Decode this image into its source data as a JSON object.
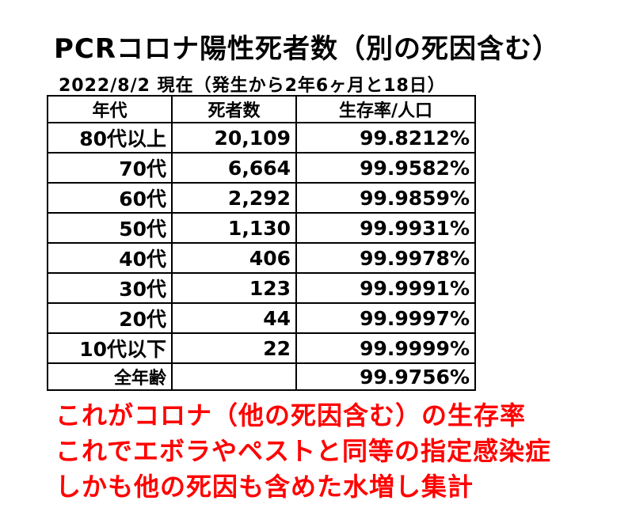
{
  "title": "PCRコロナ陽性死者数（別の死因含む）",
  "subtitle": "2022/8/2 現在（発生から2年6ヶ月と18日）",
  "table": {
    "headers": [
      "年代",
      "死者数",
      "生存率/人口"
    ],
    "rows": [
      {
        "age": "80代以上",
        "deaths": "20,109",
        "survival": "99.8212%"
      },
      {
        "age": "70代",
        "deaths": "6,664",
        "survival": "99.9582%"
      },
      {
        "age": "60代",
        "deaths": "2,292",
        "survival": "99.9859%"
      },
      {
        "age": "50代",
        "deaths": "1,130",
        "survival": "99.9931%"
      },
      {
        "age": "40代",
        "deaths": "406",
        "survival": "99.9978%"
      },
      {
        "age": "30代",
        "deaths": "123",
        "survival": "99.9991%"
      },
      {
        "age": "20代",
        "deaths": "44",
        "survival": "99.9997%"
      },
      {
        "age": "10代以下",
        "deaths": "22",
        "survival": "99.9999%"
      }
    ],
    "total": {
      "age": "全年齢",
      "deaths": "",
      "survival": "99.9756%"
    }
  },
  "notes": [
    "これがコロナ（他の死因含む）の生存率",
    "これでエボラやペストと同等の指定感染症",
    "しかも他の死因も含めた水増し集計"
  ],
  "colors": {
    "note_text": "#ff0000",
    "text": "#000000",
    "border": "#000000"
  }
}
